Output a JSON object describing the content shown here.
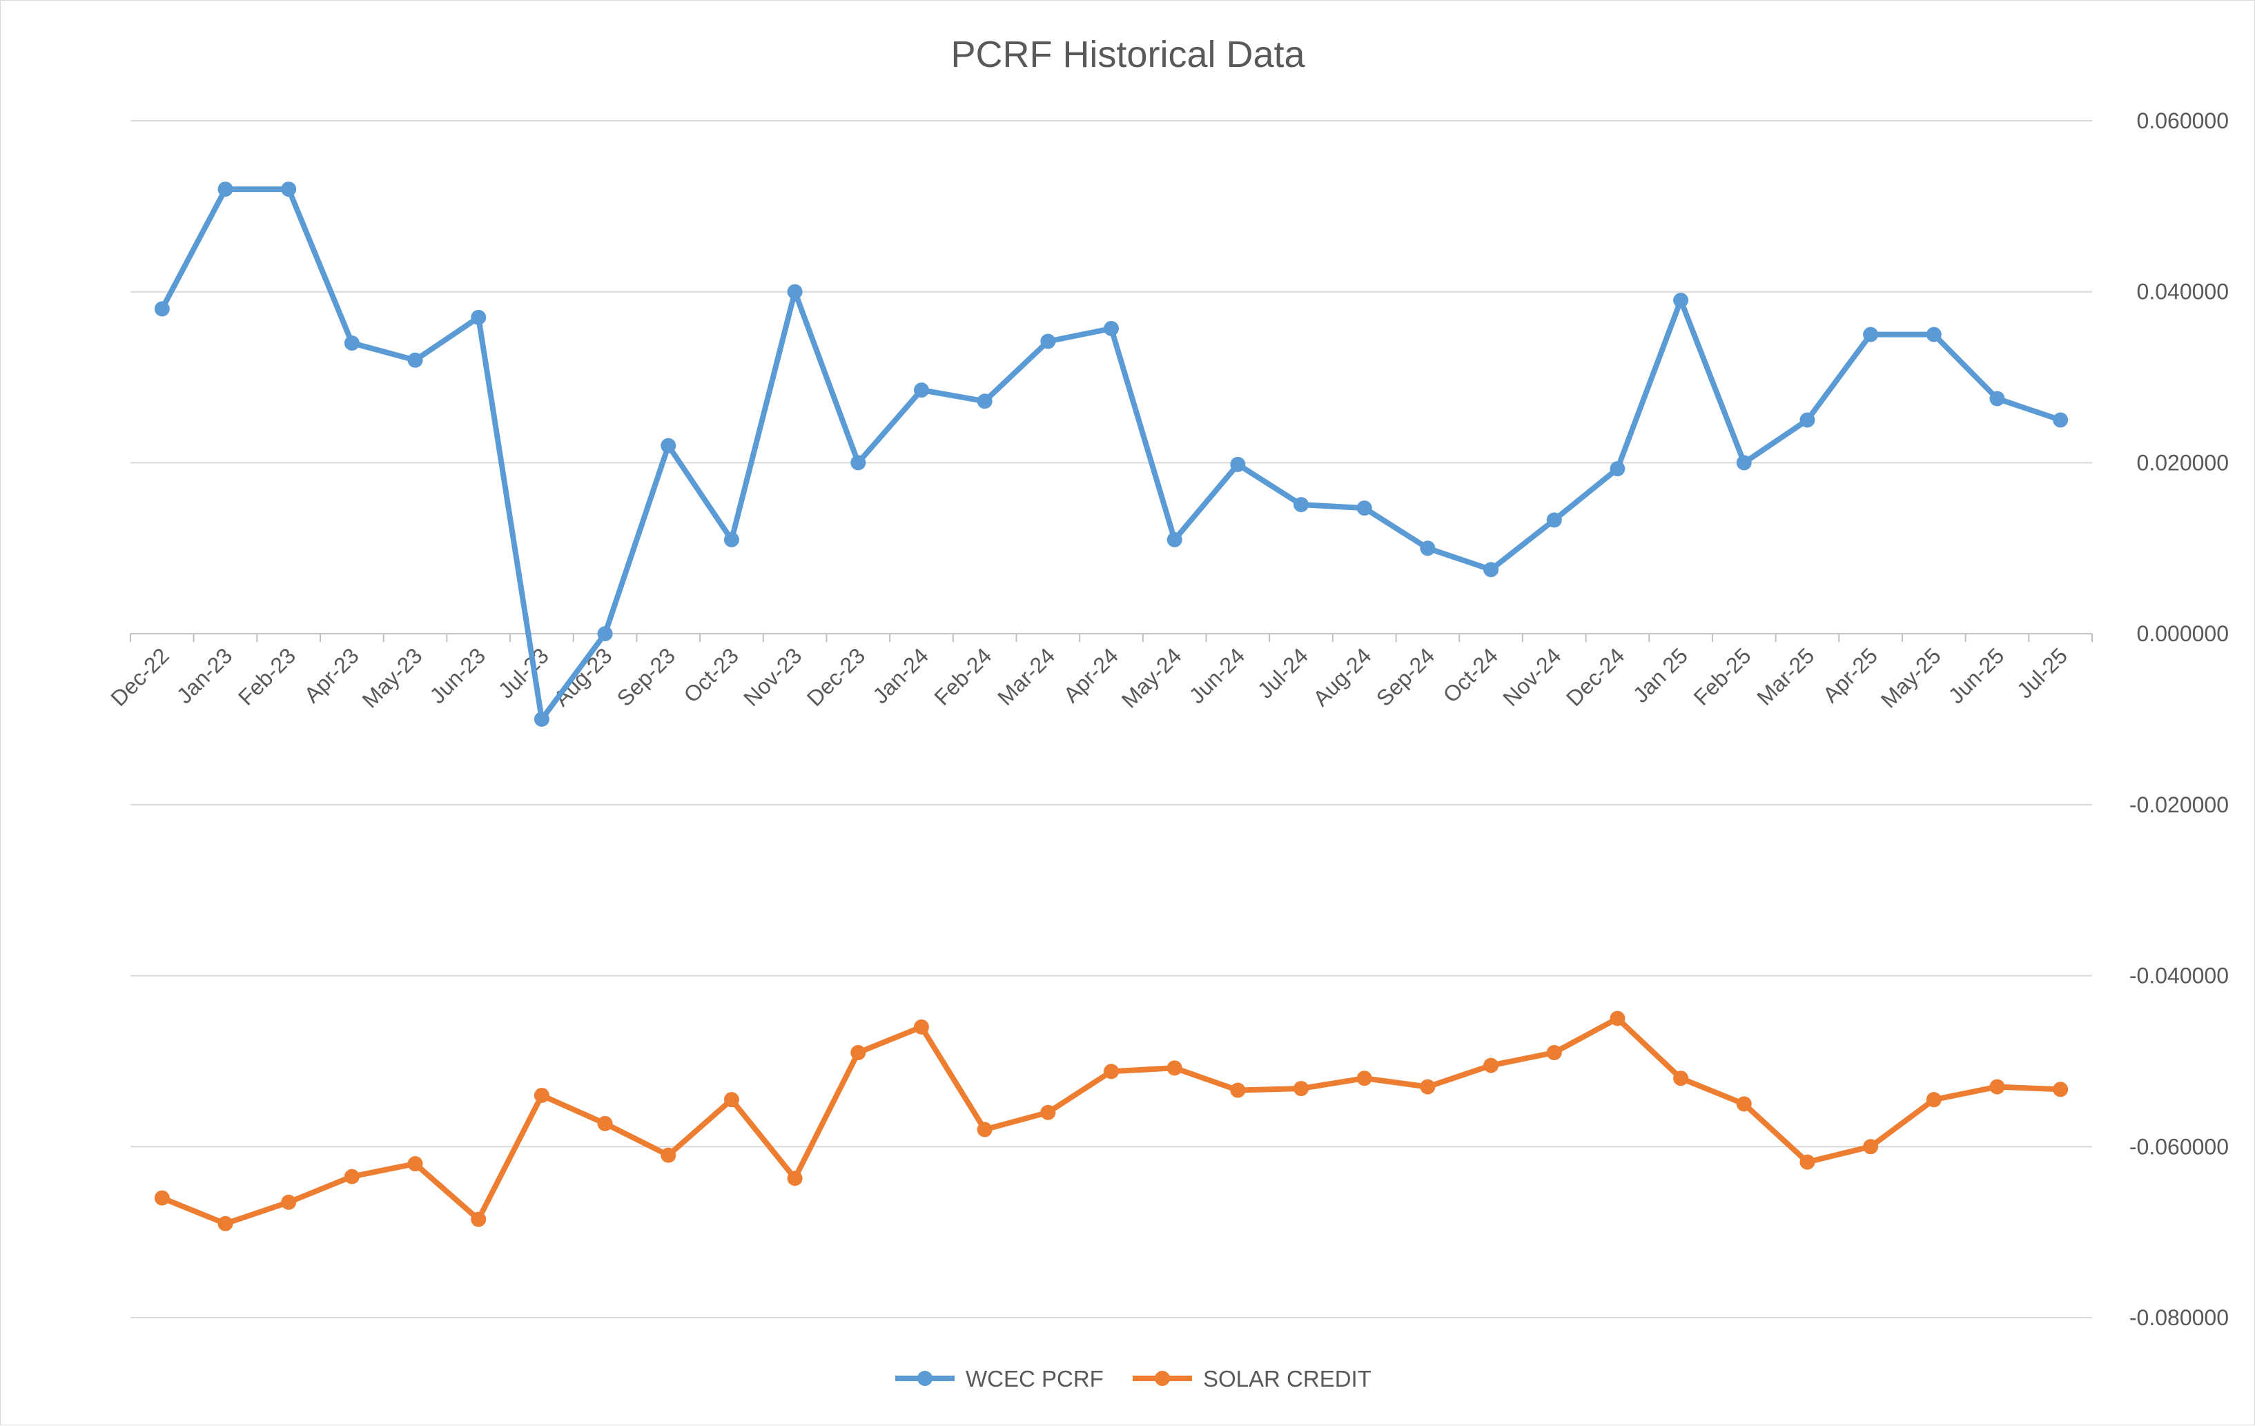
{
  "chart_data": {
    "type": "line",
    "title": "PCRF Historical Data",
    "xlabel": "",
    "ylabel": "",
    "categories": [
      "Dec-22",
      "Jan-23",
      "Feb-23",
      "Apr-23",
      "May-23",
      "Jun-23",
      "Jul-23",
      "Aug-23",
      "Sep-23",
      "Oct-23",
      "Nov-23",
      "Dec-23",
      "Jan-24",
      "Feb-24",
      "Mar-24",
      "Apr-24",
      "May-24",
      "Jun-24",
      "Jul-24",
      "Aug-24",
      "Sep-24",
      "Oct-24",
      "Nov-24",
      "Dec-24",
      "Jan 25",
      "Feb-25",
      "Mar-25",
      "Apr-25",
      "May-25",
      "Jun-25",
      "Jul-25"
    ],
    "ylim": [
      -0.08,
      0.06
    ],
    "yticks": [
      0.06,
      0.04,
      0.02,
      0.0,
      -0.02,
      -0.04,
      -0.06,
      -0.08
    ],
    "ytick_labels": [
      "0.060000",
      "0.040000",
      "0.020000",
      "0.000000",
      "-0.020000",
      "-0.040000",
      "-0.060000",
      "-0.080000"
    ],
    "y_axis_position": "right",
    "grid": true,
    "legend_position": "bottom",
    "series": [
      {
        "name": "WCEC PCRF",
        "color": "#5b9bd5",
        "values": [
          0.038,
          0.052,
          0.052,
          0.034,
          0.032,
          0.037,
          -0.01,
          0.0,
          0.022,
          0.011,
          0.04,
          0.02,
          0.0285,
          0.0272,
          0.0342,
          0.0357,
          0.011,
          0.0198,
          0.0151,
          0.0147,
          0.01,
          0.0075,
          0.0133,
          0.0193,
          0.039,
          0.02,
          0.025,
          0.035,
          0.035,
          0.0275,
          0.025
        ]
      },
      {
        "name": "SOLAR CREDIT",
        "color": "#ed7d31",
        "values": [
          -0.066,
          -0.069,
          -0.0665,
          -0.0635,
          -0.062,
          -0.0685,
          -0.054,
          -0.0573,
          -0.061,
          -0.0545,
          -0.0637,
          -0.049,
          -0.046,
          -0.058,
          -0.056,
          -0.0512,
          -0.0508,
          -0.0534,
          -0.0532,
          -0.052,
          -0.053,
          -0.0505,
          -0.049,
          -0.045,
          -0.052,
          -0.055,
          -0.0618,
          -0.06,
          -0.0545,
          -0.053,
          -0.0533
        ]
      }
    ]
  }
}
